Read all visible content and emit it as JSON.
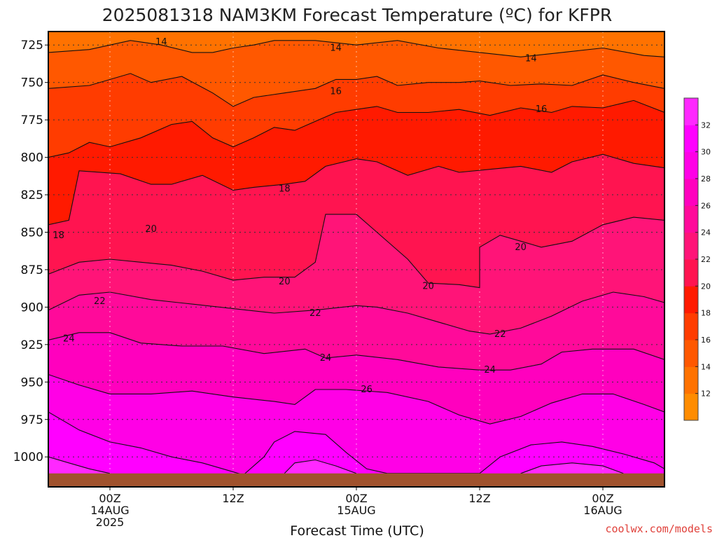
{
  "chart_data": {
    "type": "heatmap",
    "title": "2025081318 NAM3KM Forecast Temperature (ºC) for KFPR",
    "xlabel": "Forecast Time (UTC)",
    "ylabel": "",
    "credit": "coolwx.com/models",
    "x_ticks": [
      {
        "hour": 6,
        "lines": [
          "00Z",
          "14AUG",
          "2025"
        ]
      },
      {
        "hour": 18,
        "lines": [
          "12Z"
        ]
      },
      {
        "hour": 30,
        "lines": [
          "00Z",
          "15AUG"
        ]
      },
      {
        "hour": 42,
        "lines": [
          "12Z"
        ]
      },
      {
        "hour": 54,
        "lines": [
          "00Z",
          "16AUG"
        ]
      }
    ],
    "xlim": [
      0,
      60
    ],
    "y_ticks": [
      725,
      750,
      775,
      800,
      825,
      850,
      875,
      900,
      925,
      950,
      975,
      1000
    ],
    "ylim": [
      1020,
      716
    ],
    "surface_pressure_hpa": 1011,
    "grid": true,
    "colorbar": {
      "ticks": [
        12,
        14,
        16,
        18,
        20,
        22,
        24,
        26,
        28,
        30,
        32
      ],
      "colors": [
        "#ff8c00",
        "#ff7200",
        "#ff5800",
        "#ff3c00",
        "#ff1a00",
        "#ff1450",
        "#ff1478",
        "#ff0a9a",
        "#ff00be",
        "#ff00e6",
        "#ff00ff",
        "#ff28ff"
      ]
    },
    "contours": [
      {
        "level": 14,
        "label": "14",
        "points": [
          [
            0,
            730
          ],
          [
            4,
            728
          ],
          [
            8,
            722
          ],
          [
            11,
            725
          ],
          [
            14,
            730
          ],
          [
            16,
            730
          ],
          [
            18,
            727
          ],
          [
            20,
            725
          ],
          [
            22,
            722
          ],
          [
            26,
            722
          ],
          [
            30,
            725
          ],
          [
            34,
            722
          ],
          [
            38,
            727
          ],
          [
            42,
            730
          ],
          [
            46,
            733
          ],
          [
            50,
            730
          ],
          [
            54,
            727
          ],
          [
            58,
            732
          ],
          [
            60,
            733
          ]
        ]
      },
      {
        "level": 16,
        "label": "16",
        "points": [
          [
            0,
            754
          ],
          [
            4,
            752
          ],
          [
            8,
            744
          ],
          [
            10,
            750
          ],
          [
            13,
            746
          ],
          [
            16,
            757
          ],
          [
            18,
            766
          ],
          [
            20,
            760
          ],
          [
            23,
            757
          ],
          [
            26,
            754
          ],
          [
            28,
            748
          ],
          [
            30,
            748
          ],
          [
            32,
            746
          ],
          [
            34,
            752
          ],
          [
            37,
            750
          ],
          [
            40,
            750
          ],
          [
            42,
            749
          ],
          [
            45,
            752
          ],
          [
            48,
            751
          ],
          [
            51,
            752
          ],
          [
            54,
            745
          ],
          [
            57,
            750
          ],
          [
            60,
            754
          ]
        ]
      },
      {
        "level": 18,
        "label": "18",
        "points": [
          [
            0,
            800
          ],
          [
            2,
            797
          ],
          [
            4,
            790
          ],
          [
            6,
            793
          ],
          [
            9,
            787
          ],
          [
            12,
            778
          ],
          [
            14,
            776
          ],
          [
            16,
            787
          ],
          [
            18,
            793
          ],
          [
            20,
            787
          ],
          [
            22,
            780
          ],
          [
            24,
            782
          ],
          [
            26,
            776
          ],
          [
            28,
            770
          ],
          [
            30,
            768
          ],
          [
            32,
            766
          ],
          [
            34,
            770
          ],
          [
            37,
            770
          ],
          [
            40,
            768
          ],
          [
            43,
            772
          ],
          [
            46,
            767
          ],
          [
            49,
            770
          ],
          [
            51,
            766
          ],
          [
            54,
            767
          ],
          [
            57,
            762
          ],
          [
            60,
            770
          ]
        ]
      },
      {
        "level": 20,
        "label": "20",
        "points": [
          [
            0,
            845
          ],
          [
            2,
            842
          ],
          [
            3,
            809
          ],
          [
            7,
            811
          ],
          [
            10,
            818
          ],
          [
            12,
            818
          ],
          [
            15,
            812
          ],
          [
            18,
            822
          ],
          [
            20,
            820
          ],
          [
            23,
            818
          ],
          [
            25,
            816
          ],
          [
            27,
            806
          ],
          [
            30,
            801
          ],
          [
            32,
            803
          ],
          [
            35,
            812
          ],
          [
            38,
            806
          ],
          [
            40,
            810
          ],
          [
            43,
            808
          ],
          [
            46,
            806
          ],
          [
            49,
            810
          ],
          [
            51,
            803
          ],
          [
            54,
            798
          ],
          [
            57,
            804
          ],
          [
            60,
            807
          ]
        ]
      },
      {
        "level": 22,
        "label": "22",
        "points": [
          [
            0,
            878
          ],
          [
            3,
            870
          ],
          [
            6,
            868
          ],
          [
            9,
            870
          ],
          [
            12,
            872
          ],
          [
            15,
            876
          ],
          [
            18,
            882
          ],
          [
            21,
            880
          ],
          [
            24,
            880
          ],
          [
            26,
            870
          ],
          [
            27,
            838
          ],
          [
            30,
            838
          ],
          [
            32,
            850
          ],
          [
            35,
            868
          ],
          [
            37,
            884
          ],
          [
            40,
            885
          ],
          [
            42,
            887
          ],
          [
            42,
            860
          ],
          [
            44,
            852
          ],
          [
            46,
            856
          ],
          [
            48,
            860
          ],
          [
            51,
            856
          ],
          [
            54,
            845
          ],
          [
            57,
            840
          ],
          [
            60,
            842
          ]
        ]
      },
      {
        "level": 24,
        "label": "24",
        "points": [
          [
            0,
            902
          ],
          [
            3,
            892
          ],
          [
            6,
            890
          ],
          [
            10,
            895
          ],
          [
            14,
            898
          ],
          [
            18,
            901
          ],
          [
            22,
            904
          ],
          [
            26,
            902
          ],
          [
            30,
            899
          ],
          [
            32,
            900
          ],
          [
            35,
            904
          ],
          [
            38,
            910
          ],
          [
            41,
            916
          ],
          [
            43,
            918
          ],
          [
            46,
            914
          ],
          [
            49,
            906
          ],
          [
            52,
            896
          ],
          [
            55,
            890
          ],
          [
            58,
            893
          ],
          [
            60,
            897
          ]
        ]
      },
      {
        "level": 26,
        "label": "26",
        "points": [
          [
            0,
            922
          ],
          [
            3,
            917
          ],
          [
            6,
            917
          ],
          [
            9,
            924
          ],
          [
            13,
            926
          ],
          [
            17,
            926
          ],
          [
            21,
            931
          ],
          [
            25,
            928
          ],
          [
            27,
            934
          ],
          [
            30,
            932
          ],
          [
            34,
            935
          ],
          [
            38,
            940
          ],
          [
            42,
            942
          ],
          [
            45,
            942
          ],
          [
            48,
            938
          ],
          [
            50,
            930
          ],
          [
            53,
            928
          ],
          [
            57,
            928
          ],
          [
            60,
            935
          ]
        ]
      },
      {
        "level": 28,
        "label": "28",
        "points": [
          [
            0,
            945
          ],
          [
            3,
            952
          ],
          [
            6,
            958
          ],
          [
            10,
            958
          ],
          [
            14,
            956
          ],
          [
            18,
            960
          ],
          [
            22,
            963
          ],
          [
            24,
            965
          ],
          [
            26,
            955
          ],
          [
            29,
            955
          ],
          [
            33,
            957
          ],
          [
            37,
            963
          ],
          [
            40,
            972
          ],
          [
            43,
            978
          ],
          [
            46,
            973
          ],
          [
            49,
            964
          ],
          [
            52,
            958
          ],
          [
            55,
            958
          ],
          [
            58,
            965
          ],
          [
            60,
            970
          ]
        ]
      },
      {
        "level": 30,
        "label": "30",
        "points": [
          [
            0,
            970
          ],
          [
            3,
            982
          ],
          [
            6,
            990
          ],
          [
            9,
            994
          ],
          [
            12,
            1000
          ],
          [
            15,
            1004
          ],
          [
            17,
            1008
          ],
          [
            19,
            1012
          ],
          [
            21,
            1000
          ],
          [
            22,
            990
          ],
          [
            24,
            983
          ],
          [
            27,
            985
          ],
          [
            29,
            997
          ],
          [
            31,
            1008
          ],
          [
            33,
            1011
          ],
          [
            38,
            1011
          ],
          [
            42,
            1011
          ],
          [
            44,
            1000
          ],
          [
            47,
            992
          ],
          [
            50,
            990
          ],
          [
            53,
            993
          ],
          [
            56,
            998
          ],
          [
            59,
            1004
          ],
          [
            60,
            1008
          ]
        ]
      },
      {
        "level": 32,
        "label": "32",
        "points": [
          [
            0,
            1000
          ],
          [
            2,
            1004
          ],
          [
            4,
            1008
          ],
          [
            6,
            1011
          ]
        ]
      },
      {
        "level": 32,
        "label": "32",
        "points": [
          [
            23,
            1011
          ],
          [
            24,
            1004
          ],
          [
            26,
            1002
          ],
          [
            28,
            1006
          ],
          [
            30,
            1011
          ]
        ]
      },
      {
        "level": 32,
        "label": "32",
        "points": [
          [
            46,
            1011
          ],
          [
            48,
            1006
          ],
          [
            51,
            1004
          ],
          [
            54,
            1006
          ],
          [
            56,
            1011
          ]
        ]
      }
    ],
    "contour_labels": [
      {
        "text": "14",
        "x": 11.0,
        "y": 723
      },
      {
        "text": "14",
        "x": 28.0,
        "y": 727
      },
      {
        "text": "14",
        "x": 47.0,
        "y": 734
      },
      {
        "text": "16",
        "x": 28.0,
        "y": 756
      },
      {
        "text": "16",
        "x": 48.0,
        "y": 768
      },
      {
        "text": "18",
        "x": 1.0,
        "y": 852
      },
      {
        "text": "18",
        "x": 23.0,
        "y": 821
      },
      {
        "text": "20",
        "x": 10.0,
        "y": 848
      },
      {
        "text": "20",
        "x": 23.0,
        "y": 883
      },
      {
        "text": "20",
        "x": 37.0,
        "y": 886
      },
      {
        "text": "20",
        "x": 46.0,
        "y": 860
      },
      {
        "text": "22",
        "x": 5.0,
        "y": 896
      },
      {
        "text": "22",
        "x": 26.0,
        "y": 904
      },
      {
        "text": "22",
        "x": 44.0,
        "y": 918
      },
      {
        "text": "24",
        "x": 2.0,
        "y": 921
      },
      {
        "text": "24",
        "x": 27.0,
        "y": 934
      },
      {
        "text": "24",
        "x": 43.0,
        "y": 942
      },
      {
        "text": "26",
        "x": 31.0,
        "y": 955
      }
    ]
  }
}
